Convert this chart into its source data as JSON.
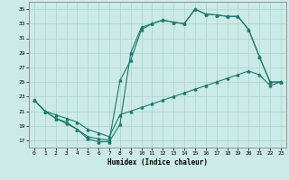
{
  "title": "",
  "xlabel": "Humidex (Indice chaleur)",
  "bg_color": "#cceae7",
  "grid_color": "#aad4d0",
  "line_color": "#1a7a6a",
  "xlim": [
    -0.5,
    23.5
  ],
  "ylim": [
    16,
    36
  ],
  "xtick_labels": [
    "0",
    "1",
    "2",
    "3",
    "4",
    "5",
    "6",
    "7",
    "8",
    "9",
    "10",
    "11",
    "12",
    "13",
    "14",
    "15",
    "16",
    "17",
    "18",
    "19",
    "20",
    "21",
    "22",
    "23"
  ],
  "ytick_values": [
    17,
    19,
    21,
    23,
    25,
    27,
    29,
    31,
    33,
    35
  ],
  "upper_x": [
    0,
    1,
    2,
    3,
    4,
    5,
    6,
    7,
    8,
    9,
    10,
    11,
    12,
    13,
    14,
    15,
    16,
    17,
    18,
    19,
    20,
    21,
    22,
    23
  ],
  "upper_y": [
    22.5,
    21.0,
    20.0,
    19.3,
    18.5,
    17.2,
    16.8,
    16.8,
    19.2,
    29.0,
    32.5,
    33.0,
    33.5,
    33.2,
    33.0,
    35.0,
    34.3,
    34.2,
    34.0,
    34.0,
    32.2,
    28.5,
    25.0,
    25.0
  ],
  "mid_x": [
    0,
    1,
    2,
    3,
    4,
    5,
    6,
    7,
    8,
    9,
    10,
    11,
    12,
    13,
    14,
    15,
    16,
    17,
    18,
    19,
    20,
    21,
    22,
    23
  ],
  "mid_y": [
    22.5,
    21.0,
    20.0,
    19.5,
    18.5,
    17.5,
    17.2,
    17.0,
    25.2,
    28.0,
    32.2,
    33.0,
    33.5,
    33.2,
    33.0,
    35.0,
    34.3,
    34.2,
    34.0,
    34.0,
    32.2,
    28.5,
    25.0,
    25.0
  ],
  "low_x": [
    0,
    1,
    2,
    3,
    4,
    5,
    6,
    7,
    8,
    9,
    10,
    11,
    12,
    13,
    14,
    15,
    16,
    17,
    18,
    19,
    20,
    21,
    22,
    23
  ],
  "low_y": [
    22.5,
    21.0,
    20.5,
    20.0,
    19.5,
    18.5,
    18.0,
    17.5,
    20.5,
    21.0,
    21.5,
    22.0,
    22.5,
    23.0,
    23.5,
    24.0,
    24.5,
    25.0,
    25.5,
    26.0,
    26.5,
    26.0,
    24.5,
    25.0
  ]
}
